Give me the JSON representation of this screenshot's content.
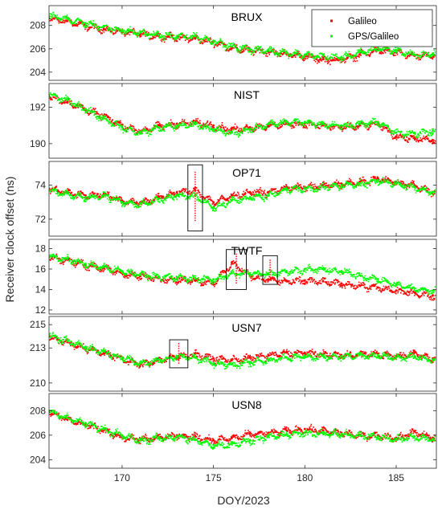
{
  "chart_data": {
    "type": "scatter",
    "xlabel": "DOY/2023",
    "ylabel": "Receiver clock offset (ns)",
    "xlim": [
      166,
      187.2
    ],
    "xticks": [
      170,
      175,
      180,
      185
    ],
    "legend": {
      "placement": "top-right",
      "entries": [
        {
          "name": "Galileo",
          "color": "#ff0000"
        },
        {
          "name": "GPS/Galileo",
          "color": "#00ff00"
        }
      ]
    },
    "panels": [
      {
        "title": "BRUX",
        "ylim": [
          203.3,
          209.7
        ],
        "yticks": [
          204,
          206,
          208
        ],
        "series": [
          {
            "name": "Galileo",
            "color": "#ff0000",
            "x": [
              166,
              167,
              168,
              169,
              170,
              171,
              172,
              173,
              174,
              175,
              176,
              177,
              178,
              179,
              180,
              181,
              182,
              183,
              184,
              185,
              186,
              187
            ],
            "y": [
              208.6,
              208.4,
              208.0,
              207.7,
              207.5,
              207.3,
              207.1,
              207.0,
              206.9,
              206.6,
              206.1,
              205.9,
              205.8,
              205.6,
              205.4,
              205.1,
              205.1,
              205.5,
              205.9,
              205.7,
              205.4,
              205.5
            ]
          },
          {
            "name": "GPS/Galileo",
            "color": "#00ff00",
            "x": [
              166,
              167,
              168,
              169,
              170,
              171,
              172,
              173,
              174,
              175,
              176,
              177,
              178,
              179,
              180,
              181,
              182,
              183,
              184,
              185,
              186,
              187
            ],
            "y": [
              208.8,
              208.6,
              208.2,
              207.9,
              207.6,
              207.4,
              207.2,
              207.1,
              207.1,
              206.7,
              206.2,
              206.0,
              205.9,
              205.7,
              205.5,
              205.4,
              205.3,
              205.7,
              206.1,
              205.9,
              205.5,
              205.6
            ]
          }
        ]
      },
      {
        "title": "NIST",
        "ylim": [
          189.2,
          193.3
        ],
        "yticks": [
          190,
          192
        ],
        "series": [
          {
            "name": "Galileo",
            "color": "#ff0000",
            "x": [
              166,
              167,
              168,
              169,
              170,
              171,
              172,
              173,
              174,
              175,
              176,
              177,
              178,
              179,
              180,
              181,
              182,
              183,
              184,
              185,
              186,
              187
            ],
            "y": [
              192.6,
              192.3,
              191.9,
              191.5,
              191.0,
              190.7,
              191.0,
              191.1,
              191.2,
              191.0,
              190.8,
              190.9,
              191.0,
              191.1,
              191.1,
              191.0,
              190.9,
              191.0,
              191.1,
              190.4,
              190.3,
              190.2
            ]
          },
          {
            "name": "GPS/Galileo",
            "color": "#00ff00",
            "x": [
              166,
              167,
              168,
              169,
              170,
              171,
              172,
              173,
              174,
              175,
              176,
              177,
              178,
              179,
              180,
              181,
              182,
              183,
              184,
              185,
              186,
              187
            ],
            "y": [
              192.7,
              192.4,
              191.9,
              191.4,
              190.9,
              190.6,
              190.9,
              191.0,
              191.1,
              190.8,
              190.6,
              190.8,
              191.1,
              191.2,
              191.2,
              191.1,
              191.0,
              191.1,
              191.2,
              190.6,
              190.6,
              190.7
            ]
          }
        ]
      },
      {
        "title": "OP71",
        "ylim": [
          71.0,
          75.4
        ],
        "yticks": [
          72,
          74
        ],
        "series": [
          {
            "name": "Galileo",
            "color": "#ff0000",
            "x": [
              166,
              167,
              168,
              169,
              170,
              171,
              172,
              173,
              174,
              175,
              176,
              177,
              178,
              179,
              180,
              181,
              182,
              183,
              184,
              185,
              186,
              187
            ],
            "y": [
              73.8,
              73.6,
              73.4,
              73.5,
              73.1,
              73.0,
              73.3,
              73.6,
              73.7,
              73.0,
              73.4,
              73.6,
              73.6,
              73.9,
              73.9,
              74.0,
              74.1,
              74.2,
              74.4,
              74.2,
              74.0,
              73.6
            ]
          },
          {
            "name": "GPS/Galileo",
            "color": "#00ff00",
            "x": [
              166,
              167,
              168,
              169,
              170,
              171,
              172,
              173,
              174,
              175,
              176,
              177,
              178,
              179,
              180,
              181,
              182,
              183,
              184,
              185,
              186,
              187
            ],
            "y": [
              73.7,
              73.5,
              73.3,
              73.4,
              73.0,
              72.9,
              73.2,
              73.4,
              73.4,
              72.7,
              73.1,
              73.3,
              73.4,
              73.8,
              73.8,
              73.9,
              74.0,
              74.1,
              74.3,
              74.1,
              73.9,
              73.6
            ]
          }
        ]
      },
      {
        "title": "TWTF",
        "ylim": [
          11.6,
          18.9
        ],
        "yticks": [
          12,
          14,
          16,
          18
        ],
        "series": [
          {
            "name": "Galileo",
            "color": "#ff0000",
            "x": [
              166,
              167,
              168,
              169,
              170,
              171,
              172,
              173,
              174,
              175,
              176,
              177,
              178,
              179,
              180,
              181,
              182,
              183,
              184,
              185,
              186,
              187
            ],
            "y": [
              17.2,
              16.9,
              16.4,
              16.1,
              15.6,
              15.3,
              15.1,
              15.0,
              14.9,
              14.7,
              16.6,
              15.4,
              15.0,
              14.8,
              14.9,
              14.8,
              14.6,
              14.4,
              14.2,
              13.9,
              13.7,
              13.4
            ]
          },
          {
            "name": "GPS/Galileo",
            "color": "#00ff00",
            "x": [
              166,
              167,
              168,
              169,
              170,
              171,
              172,
              173,
              174,
              175,
              176,
              177,
              178,
              179,
              180,
              181,
              182,
              183,
              184,
              185,
              186,
              187
            ],
            "y": [
              17.3,
              17.0,
              16.5,
              16.2,
              15.8,
              15.5,
              15.3,
              15.2,
              15.1,
              15.0,
              15.6,
              15.6,
              15.6,
              15.8,
              16.0,
              16.0,
              15.8,
              15.4,
              15.0,
              14.5,
              14.1,
              13.9
            ]
          }
        ]
      },
      {
        "title": "USN7",
        "ylim": [
          209.3,
          215.7
        ],
        "yticks": [
          210,
          213,
          215
        ],
        "series": [
          {
            "name": "Galileo",
            "color": "#ff0000",
            "x": [
              166,
              167,
              168,
              169,
              170,
              171,
              172,
              173,
              174,
              175,
              176,
              177,
              178,
              179,
              180,
              181,
              182,
              183,
              184,
              185,
              186,
              187
            ],
            "y": [
              214.0,
              213.5,
              213.0,
              212.6,
              212.1,
              211.6,
              212.0,
              212.3,
              212.5,
              212.1,
              212.0,
              212.2,
              212.4,
              212.6,
              212.6,
              212.5,
              212.4,
              212.5,
              212.5,
              212.3,
              212.6,
              212.1
            ]
          },
          {
            "name": "GPS/Galileo",
            "color": "#00ff00",
            "x": [
              166,
              167,
              168,
              169,
              170,
              171,
              172,
              173,
              174,
              175,
              176,
              177,
              178,
              179,
              180,
              181,
              182,
              183,
              184,
              185,
              186,
              187
            ],
            "y": [
              214.1,
              213.6,
              213.1,
              212.7,
              212.2,
              211.7,
              212.0,
              212.3,
              212.2,
              211.7,
              211.6,
              211.8,
              212.0,
              212.2,
              212.3,
              212.3,
              212.3,
              212.4,
              212.4,
              212.2,
              212.3,
              212.0
            ]
          }
        ]
      },
      {
        "title": "USN8",
        "ylim": [
          203.3,
          209.4
        ],
        "yticks": [
          204,
          206,
          208
        ],
        "series": [
          {
            "name": "Galileo",
            "color": "#ff0000",
            "x": [
              166,
              167,
              168,
              169,
              170,
              171,
              172,
              173,
              174,
              175,
              176,
              177,
              178,
              179,
              180,
              181,
              182,
              183,
              184,
              185,
              186,
              187
            ],
            "y": [
              207.9,
              207.3,
              206.9,
              206.4,
              205.9,
              205.7,
              205.9,
              206.0,
              205.9,
              205.6,
              205.8,
              206.1,
              206.2,
              206.4,
              206.5,
              206.4,
              206.2,
              206.0,
              206.0,
              205.8,
              206.3,
              205.8
            ]
          },
          {
            "name": "GPS/Galileo",
            "color": "#00ff00",
            "x": [
              166,
              167,
              168,
              169,
              170,
              171,
              172,
              173,
              174,
              175,
              176,
              177,
              178,
              179,
              180,
              181,
              182,
              183,
              184,
              185,
              186,
              187
            ],
            "y": [
              208.0,
              207.4,
              207.0,
              206.5,
              206.0,
              205.6,
              205.8,
              205.9,
              205.6,
              205.2,
              205.3,
              205.6,
              205.9,
              206.1,
              206.2,
              206.2,
              206.1,
              206.0,
              205.9,
              205.7,
              205.9,
              205.7
            ]
          }
        ]
      }
    ],
    "annotations": [
      {
        "panel": "OP71",
        "type": "box",
        "x": [
          173.6,
          174.4
        ],
        "y": [
          71.3,
          75.2
        ]
      },
      {
        "panel": "TWTF",
        "type": "box",
        "x": [
          175.7,
          176.8
        ],
        "y": [
          14.0,
          17.9
        ]
      },
      {
        "panel": "TWTF",
        "type": "box",
        "x": [
          177.7,
          178.5
        ],
        "y": [
          14.5,
          17.3
        ]
      },
      {
        "panel": "USN7",
        "type": "box",
        "x": [
          172.6,
          173.6
        ],
        "y": [
          211.3,
          213.7
        ]
      }
    ]
  }
}
